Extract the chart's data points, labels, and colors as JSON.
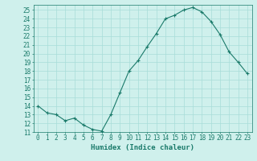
{
  "x": [
    0,
    1,
    2,
    3,
    4,
    5,
    6,
    7,
    8,
    9,
    10,
    11,
    12,
    13,
    14,
    15,
    16,
    17,
    18,
    19,
    20,
    21,
    22,
    23
  ],
  "y": [
    14.0,
    13.2,
    13.0,
    12.3,
    12.6,
    11.8,
    11.3,
    11.1,
    13.0,
    15.5,
    18.0,
    19.2,
    20.8,
    22.3,
    24.0,
    24.4,
    25.0,
    25.3,
    24.8,
    23.7,
    22.2,
    20.2,
    19.0,
    17.7
  ],
  "line_color": "#1a7a6a",
  "marker": "+",
  "marker_size": 3,
  "bg_color": "#cff0ec",
  "grid_color": "#a8ddd8",
  "xlabel": "Humidex (Indice chaleur)",
  "xlim": [
    -0.5,
    23.5
  ],
  "ylim": [
    11,
    25.6
  ],
  "yticks": [
    11,
    12,
    13,
    14,
    15,
    16,
    17,
    18,
    19,
    20,
    21,
    22,
    23,
    24,
    25
  ],
  "xticks": [
    0,
    1,
    2,
    3,
    4,
    5,
    6,
    7,
    8,
    9,
    10,
    11,
    12,
    13,
    14,
    15,
    16,
    17,
    18,
    19,
    20,
    21,
    22,
    23
  ],
  "tick_color": "#1a7a6a",
  "axis_color": "#1a7a6a",
  "label_fontsize": 6.5,
  "tick_fontsize": 5.5
}
